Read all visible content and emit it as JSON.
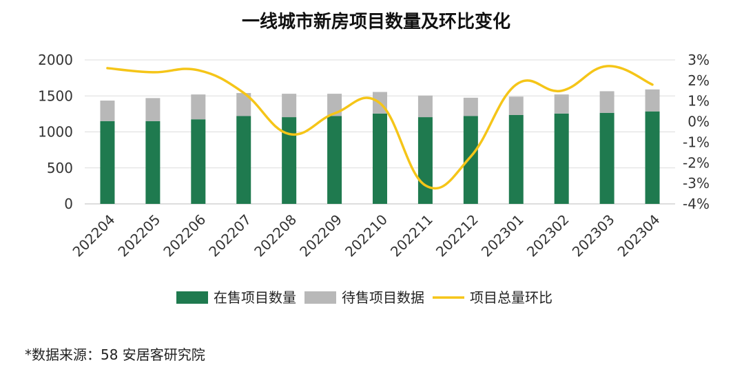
{
  "chart_data": {
    "type": "bar",
    "title": "一线城市新房项目数量及环比变化",
    "categories": [
      "202204",
      "202205",
      "202206",
      "202207",
      "202208",
      "202209",
      "202210",
      "202211",
      "202212",
      "202301",
      "202302",
      "202303",
      "202304"
    ],
    "series": [
      {
        "name": "在售项目数量",
        "type": "bar",
        "stack": "main",
        "axis": "left",
        "color": "#1f7a4f",
        "values": [
          1150,
          1150,
          1175,
          1220,
          1205,
          1220,
          1255,
          1205,
          1220,
          1235,
          1255,
          1265,
          1285
        ]
      },
      {
        "name": "待售项目数据",
        "type": "bar",
        "stack": "main",
        "axis": "left",
        "color": "#b8b8b8",
        "values": [
          285,
          320,
          345,
          320,
          325,
          310,
          300,
          300,
          255,
          255,
          265,
          300,
          305
        ]
      },
      {
        "name": "项目总量环比",
        "type": "line",
        "axis": "right",
        "color": "#f5c518",
        "values": [
          2.6,
          2.4,
          2.5,
          1.4,
          -0.6,
          0.4,
          0.9,
          -3.1,
          -1.7,
          1.8,
          1.5,
          2.7,
          1.8
        ]
      }
    ],
    "y_left": {
      "min": 0,
      "max": 2000,
      "ticks": [
        "0",
        "500",
        "1000",
        "1500",
        "2000"
      ]
    },
    "y_right": {
      "min": -4,
      "max": 3,
      "ticks": [
        "-4%",
        "-3%",
        "-2%",
        "-1%",
        "0%",
        "1%",
        "2%",
        "3%"
      ]
    },
    "grid": true,
    "legend": "bottom"
  },
  "source_text": "*数据来源：58 安居客研究院"
}
